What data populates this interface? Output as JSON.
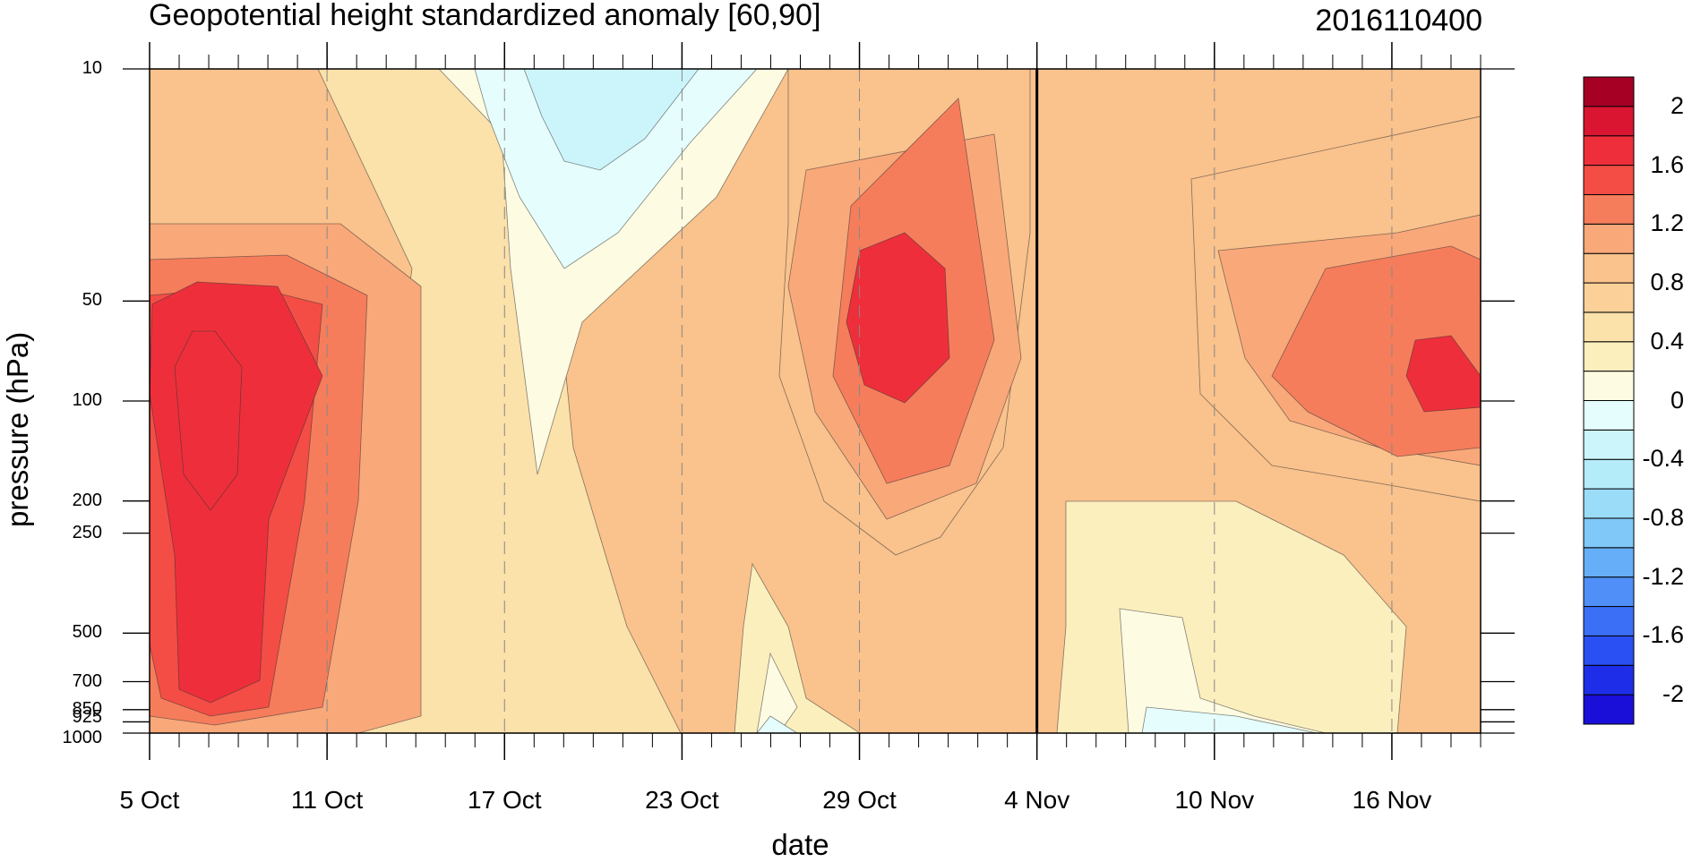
{
  "chart_data": {
    "type": "heatmap",
    "title": "Geopotential height standardized anomaly [60,90]",
    "subtitle_right": "2016110400",
    "xlabel": "date",
    "ylabel": "pressure (hPa)",
    "y_scale": "log",
    "y_reversed": true,
    "y_range": [
      1000,
      10
    ],
    "y_ticks": [
      10,
      50,
      100,
      200,
      250,
      500,
      700,
      850,
      925,
      1000
    ],
    "y_tick_labels": [
      "10",
      "50",
      "100",
      "200",
      "250",
      "500",
      "700",
      "850",
      "925",
      "1000"
    ],
    "x_range": [
      "2016-10-05",
      "2016-11-19"
    ],
    "x_ticks": [
      "2016-10-05",
      "2016-10-11",
      "2016-10-17",
      "2016-10-23",
      "2016-10-29",
      "2016-11-04",
      "2016-11-10",
      "2016-11-16"
    ],
    "x_tick_labels": [
      "5 Oct",
      "11 Oct",
      "17 Oct",
      "23 Oct",
      "29 Oct",
      "4 Nov",
      "10 Nov",
      "16 Nov"
    ],
    "analysis_date_marker": "2016-11-04",
    "grid": "dashed vertical lines at date ticks",
    "colorbar": {
      "levels": [
        -2,
        -1.8,
        -1.6,
        -1.4,
        -1.2,
        -1,
        -0.8,
        -0.6,
        -0.4,
        -0.2,
        0,
        0.2,
        0.4,
        0.6,
        0.8,
        1,
        1.2,
        1.4,
        1.6,
        1.8,
        2
      ],
      "labels": [
        "2",
        "1.6",
        "1.2",
        "0.8",
        "0.4",
        "0",
        "-0.4",
        "-0.8",
        "-1.2",
        "-1.6",
        "-2"
      ],
      "colors": [
        "#1a0fd9",
        "#1e2ee8",
        "#2a4ff2",
        "#3b6ff5",
        "#4f8ff7",
        "#66aef7",
        "#80c8f8",
        "#9bdcf9",
        "#b5ecfa",
        "#ccf5fb",
        "#e5fdfc",
        "#fdfbe2",
        "#fcefbe",
        "#fbe1aa",
        "#fbd199",
        "#fac28c",
        "#f9a87a",
        "#f67d5b",
        "#f34d45",
        "#ee2f3b",
        "#d91532",
        "#a60025"
      ],
      "position": "right"
    },
    "features": [
      {
        "name": "positive anomaly core",
        "date": "2016-10-07",
        "pressure_hPa": 100,
        "value": 1.8
      },
      {
        "name": "negative anomaly",
        "date": "2016-10-20",
        "pressure_hPa": 20,
        "value": -0.3
      },
      {
        "name": "positive anomaly core",
        "date": "2016-10-30",
        "pressure_hPa": 60,
        "value": 1.6
      },
      {
        "name": "positive anomaly core",
        "date": "2016-11-18",
        "pressure_hPa": 100,
        "value": 1.6
      },
      {
        "name": "weak negative",
        "date": "2016-11-12",
        "pressure_hPa": 950,
        "value": -0.1
      }
    ]
  }
}
